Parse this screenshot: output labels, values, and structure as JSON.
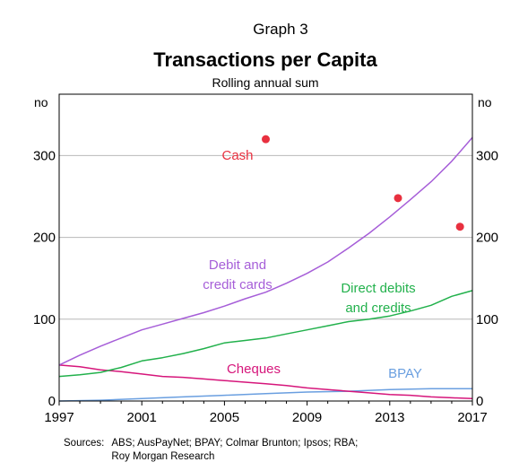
{
  "graph_label": "Graph 3",
  "sources_label": "Sources:",
  "sources_lines": [
    "ABS; AusPayNet; BPAY; Colmar Brunton; Ipsos; RBA;",
    "Roy Morgan Research"
  ],
  "chart_data": {
    "type": "line",
    "title": "Transactions per Capita",
    "subtitle": "Rolling annual sum",
    "y_unit_left": "no",
    "y_unit_right": "no",
    "xlim": [
      1997,
      2017
    ],
    "ylim": [
      0,
      375
    ],
    "x_ticks": [
      1997,
      2001,
      2005,
      2009,
      2013,
      2017
    ],
    "x_tick_labels": [
      "1997",
      "2001",
      "2005",
      "2009",
      "2013",
      "2017"
    ],
    "y_ticks": [
      0,
      100,
      200,
      300
    ],
    "y_tick_labels": [
      "0",
      "100",
      "200",
      "300"
    ],
    "grid": true,
    "series": [
      {
        "name": "Debit and credit cards",
        "label_lines": [
          "Debit and",
          "credit cards"
        ],
        "color": "#a65ed8",
        "style": "line",
        "x": [
          1997,
          1998,
          1999,
          2000,
          2001,
          2002,
          2003,
          2004,
          2005,
          2006,
          2007,
          2008,
          2009,
          2010,
          2011,
          2012,
          2013,
          2014,
          2015,
          2016,
          2017
        ],
        "y": [
          44,
          56,
          67,
          77,
          87,
          94,
          101,
          108,
          116,
          125,
          133,
          144,
          156,
          170,
          187,
          205,
          225,
          246,
          268,
          293,
          322
        ]
      },
      {
        "name": "Direct debits and credits",
        "label_lines": [
          "Direct debits",
          "and credits"
        ],
        "color": "#22b14c",
        "style": "line",
        "x": [
          1997,
          1998,
          1999,
          2000,
          2001,
          2002,
          2003,
          2004,
          2005,
          2006,
          2007,
          2008,
          2009,
          2010,
          2011,
          2012,
          2013,
          2014,
          2015,
          2016,
          2017
        ],
        "y": [
          30,
          32,
          35,
          41,
          49,
          53,
          58,
          64,
          71,
          74,
          77,
          82,
          87,
          92,
          97,
          100,
          104,
          110,
          117,
          128,
          135
        ]
      },
      {
        "name": "Cheques",
        "label_lines": [
          "Cheques"
        ],
        "color": "#d6167b",
        "style": "line",
        "x": [
          1997,
          1998,
          1999,
          2000,
          2001,
          2002,
          2003,
          2004,
          2005,
          2006,
          2007,
          2008,
          2009,
          2010,
          2011,
          2012,
          2013,
          2014,
          2015,
          2016,
          2017
        ],
        "y": [
          44,
          42,
          38,
          36,
          33,
          30,
          29,
          27,
          25,
          23,
          21,
          19,
          16,
          14,
          12,
          10,
          8,
          7,
          5,
          4,
          3
        ]
      },
      {
        "name": "BPAY",
        "label_lines": [
          "BPAY"
        ],
        "color": "#6a9fe0",
        "style": "line",
        "x": [
          1997,
          1999,
          2001,
          2003,
          2005,
          2007,
          2009,
          2011,
          2013,
          2015,
          2017
        ],
        "y": [
          0,
          1,
          3,
          5,
          7,
          9,
          11,
          12,
          14,
          15,
          15
        ]
      },
      {
        "name": "Cash",
        "label_lines": [
          "Cash"
        ],
        "color": "#e8303f",
        "style": "points",
        "x": [
          2007,
          2013.4,
          2016.4
        ],
        "y": [
          320,
          248,
          213
        ]
      }
    ]
  }
}
